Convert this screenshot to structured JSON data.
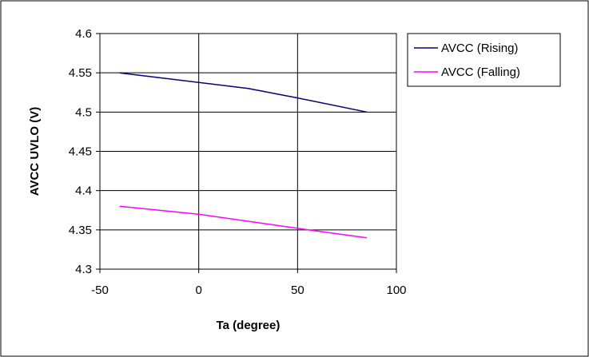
{
  "chart_data": {
    "type": "line",
    "title": "",
    "xlabel": "Ta (degree)",
    "ylabel": "AVCC UVLO (V)",
    "xlim": [
      -50,
      100
    ],
    "ylim": [
      4.3,
      4.6
    ],
    "x_ticks": [
      "-50",
      "0",
      "50",
      "100"
    ],
    "y_ticks": [
      "4.3",
      "4.35",
      "4.4",
      "4.45",
      "4.5",
      "4.55",
      "4.6"
    ],
    "grid": true,
    "legend_position": "right",
    "series": [
      {
        "name": "AVCC (Rising)",
        "color": "#000080",
        "x": [
          -40,
          25,
          50,
          85
        ],
        "y": [
          4.55,
          4.53,
          4.518,
          4.5
        ]
      },
      {
        "name": "AVCC (Falling)",
        "color": "#ff00ff",
        "x": [
          -40,
          0,
          50,
          85
        ],
        "y": [
          4.38,
          4.37,
          4.352,
          4.34
        ]
      }
    ]
  }
}
